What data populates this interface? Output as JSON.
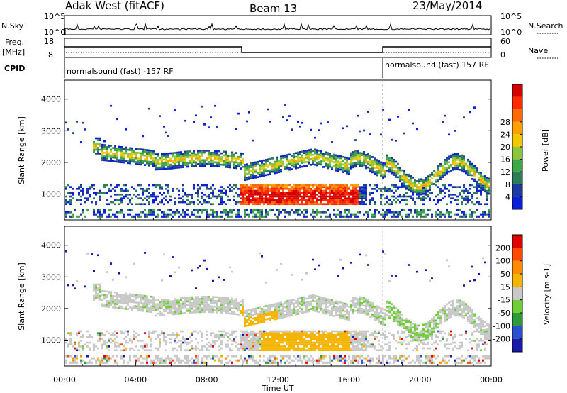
{
  "header": {
    "station": "Adak West (fitACF)",
    "beam": "Beam 13",
    "date": "23/May/2014"
  },
  "sky_panel": {
    "left_label": "N.Sky",
    "right_label": "N.Search",
    "left_ticks": [
      "10^5",
      "10^0"
    ],
    "right_ticks": [
      "10^5",
      "10^0"
    ]
  },
  "freq_panel": {
    "left_label_1": "Freq.",
    "left_label_2": "[MHz]",
    "right_label": "Nave",
    "left_ticks": [
      "18",
      "8"
    ],
    "right_ticks": [
      "60",
      "0"
    ]
  },
  "cpid": {
    "label": "CPID",
    "segment_1": "normalsound (fast) -157 RF",
    "segment_2": "normalsound (fast) 157 RF"
  },
  "chart_data": [
    {
      "type": "heatmap",
      "quantity": "Power",
      "ylabel": "Slant Range [km]",
      "ylim": [
        180,
        4600
      ],
      "y_ticks": [
        "1000",
        "2000",
        "3000",
        "4000"
      ],
      "x_ticks": [
        "00:00",
        "04:00",
        "08:00",
        "12:00",
        "16:00",
        "20:00",
        "00:00"
      ],
      "colorbar": {
        "label": "Power [dB]",
        "ticks": [
          "4",
          "8",
          "12",
          "16",
          "20",
          "24",
          "28"
        ],
        "colors": [
          "#0b1fd6",
          "#1c3aa0",
          "#2e7d5a",
          "#3fa64a",
          "#8cc63f",
          "#f0c800",
          "#ffa000",
          "#ff6a00",
          "#ff2a00",
          "#d40000"
        ]
      }
    },
    {
      "type": "heatmap",
      "quantity": "Velocity",
      "ylabel": "Slant Range [km]",
      "ylim": [
        180,
        4600
      ],
      "y_ticks": [
        "1000",
        "2000",
        "3000",
        "4000"
      ],
      "x_ticks": [
        "00:00",
        "04:00",
        "08:00",
        "12:00",
        "16:00",
        "20:00",
        "00:00"
      ],
      "xlabel": "Time UT",
      "colorbar": {
        "label": "Velocity [m s-1]",
        "ticks": [
          "200",
          "100",
          "50",
          "15",
          "-15",
          "-50",
          "-100",
          "-200"
        ],
        "colors": [
          "#1a1aa8",
          "#2a4fd0",
          "#2e9a3a",
          "#6fce3a",
          "#c8c8c8",
          "#f5b400",
          "#ff8c00",
          "#ff4a00",
          "#e00000"
        ]
      }
    }
  ]
}
